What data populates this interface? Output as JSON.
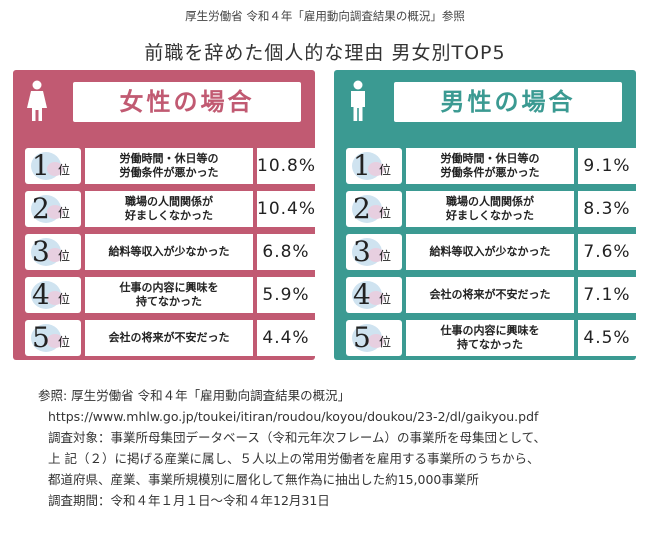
{
  "source_top": "厚生労働省 令和４年「雇用動向調査結果の概況」参照",
  "title": "前職を辞めた個人的な理由 男女別TOP5",
  "rank_suffix": "位",
  "colors": {
    "female": "#c15a72",
    "male": "#3b9a92"
  },
  "female": {
    "heading": "女性の場合",
    "icon": "female-person-icon",
    "rows": [
      {
        "rank": "1",
        "reason": "労働時間・休日等の\n労働条件が悪かった",
        "pct": "10.8%"
      },
      {
        "rank": "2",
        "reason": "職場の人間関係が\n好ましくなかった",
        "pct": "10.4%"
      },
      {
        "rank": "3",
        "reason": "給料等収入が少なかった",
        "pct": "6.8%"
      },
      {
        "rank": "4",
        "reason": "仕事の内容に興味を\n持てなかった",
        "pct": "5.9%"
      },
      {
        "rank": "5",
        "reason": "会社の将来が不安だった",
        "pct": "4.4%"
      }
    ]
  },
  "male": {
    "heading": "男性の場合",
    "icon": "male-person-icon",
    "rows": [
      {
        "rank": "1",
        "reason": "労働時間・休日等の\n労働条件が悪かった",
        "pct": "9.1%"
      },
      {
        "rank": "2",
        "reason": "職場の人間関係が\n好ましくなかった",
        "pct": "8.3%"
      },
      {
        "rank": "3",
        "reason": "給料等収入が少なかった",
        "pct": "7.6%"
      },
      {
        "rank": "4",
        "reason": "会社の将来が不安だった",
        "pct": "7.1%"
      },
      {
        "rank": "5",
        "reason": "仕事の内容に興味を\n持てなかった",
        "pct": "4.5%"
      }
    ]
  },
  "notes": {
    "reference": "参照: 厚生労働省 令和４年「雇用動向調査結果の概況」",
    "url": "https://www.mhlw.go.jp/toukei/itiran/roudou/koyou/doukou/23-2/dl/gaikyou.pdf",
    "target_line1": "調査対象：事業所母集団データベース（令和元年次フレーム）の事業所を母集団として、",
    "target_line2": "上 記（２）に掲げる産業に属し、５人以上の常用労働者を雇用する事業所のうちから、",
    "target_line3": "都道府県、産業、事業所規模別に層化して無作為に抽出した約15,000事業所",
    "period": "調査期間：令和４年１月１日〜令和４年12月31日"
  }
}
